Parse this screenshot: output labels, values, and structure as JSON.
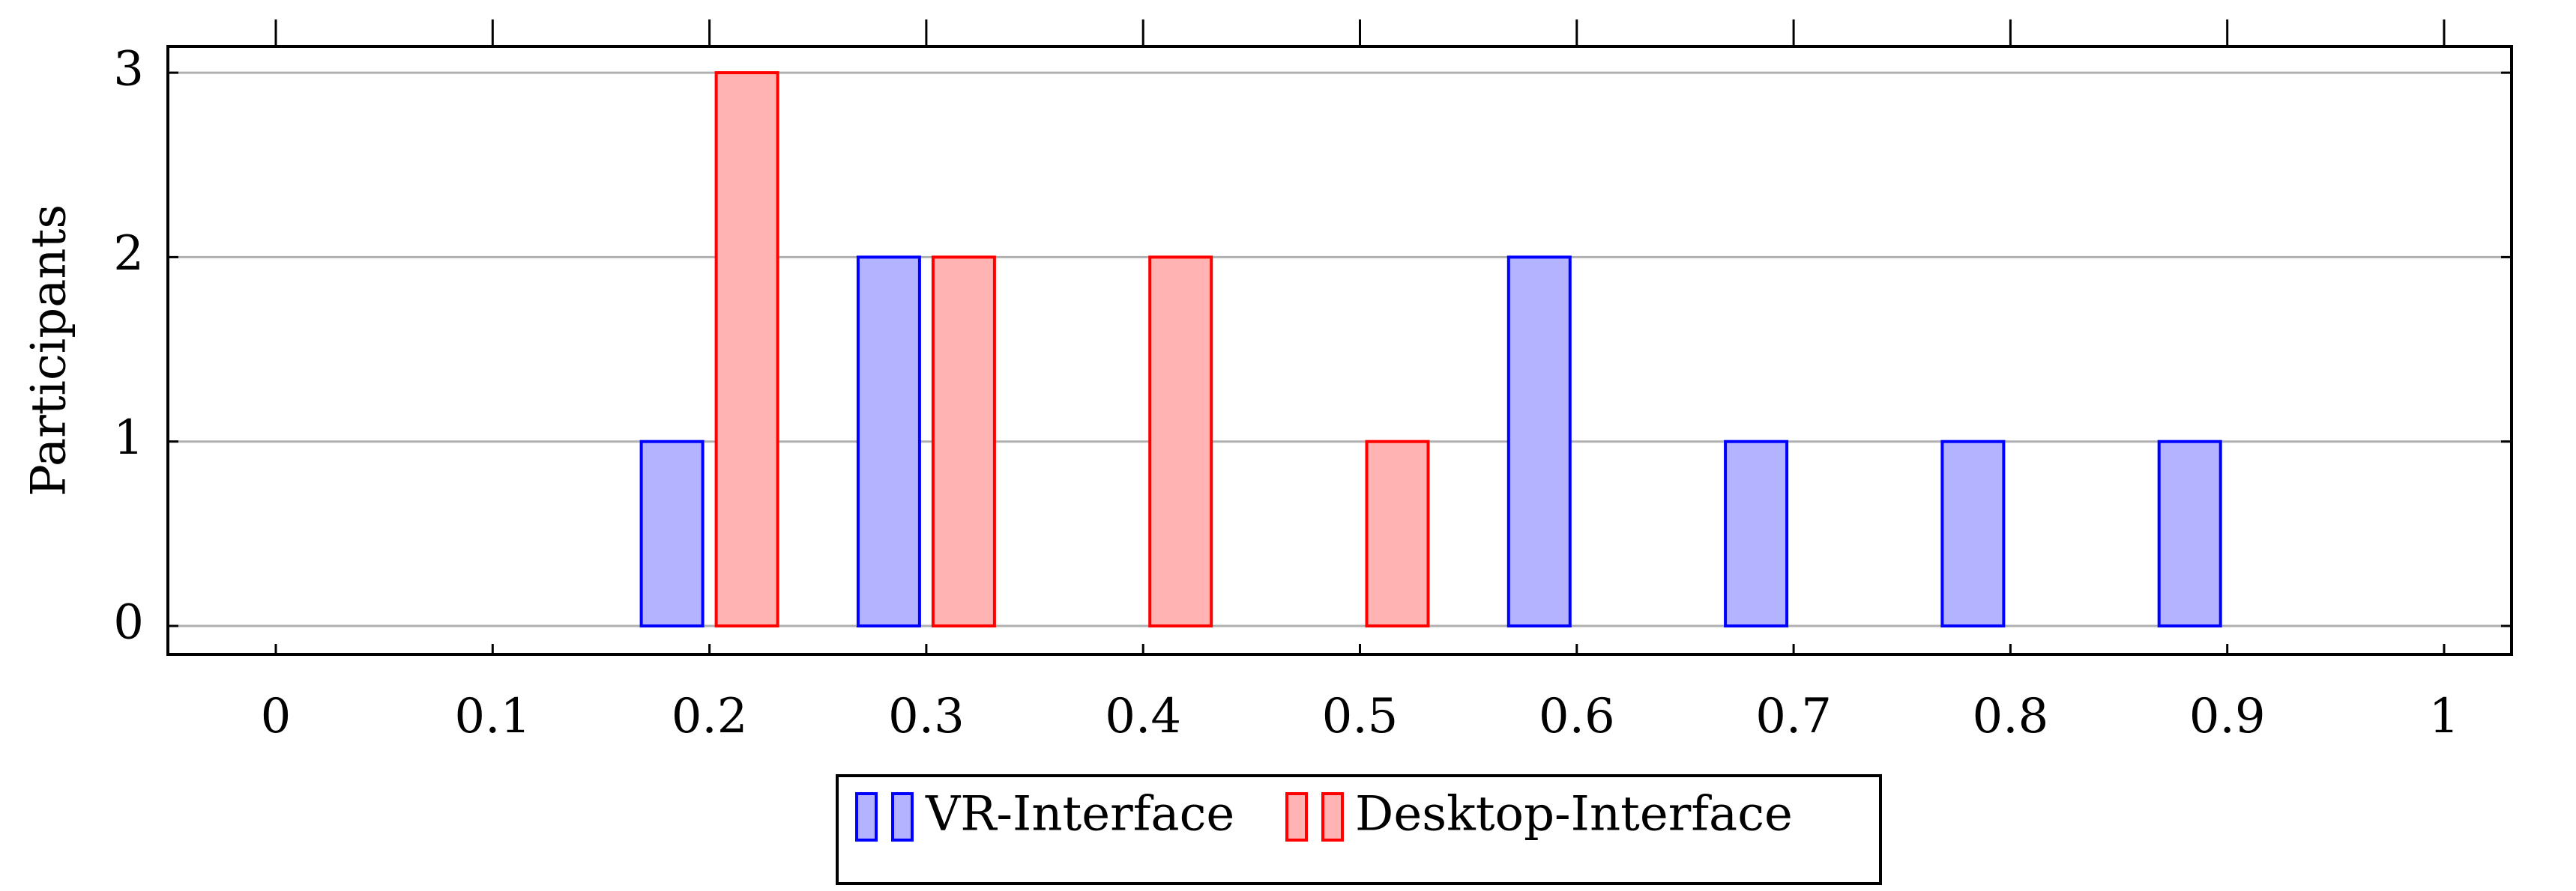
{
  "chart_data": {
    "type": "bar",
    "x": [
      "0",
      "0.1",
      "0.2",
      "0.3",
      "0.4",
      "0.5",
      "0.6",
      "0.7",
      "0.8",
      "0.9",
      "1"
    ],
    "series": [
      {
        "name": "VR-Interface",
        "values": [
          0,
          0,
          1,
          2,
          0,
          0,
          2,
          1,
          1,
          1,
          0
        ],
        "fill": "#b3b3ff",
        "stroke": "#0000ff"
      },
      {
        "name": "Desktop-Interface",
        "values": [
          0,
          0,
          3,
          2,
          2,
          1,
          0,
          0,
          0,
          0,
          0
        ],
        "fill": "#ffb3b3",
        "stroke": "#ff0000"
      }
    ],
    "xlabel": "",
    "ylabel": "Participants",
    "ylim": [
      0,
      3
    ],
    "yticks": [
      "0",
      "1",
      "2",
      "3"
    ],
    "grid": "horizontal",
    "legend": "bottom-center"
  }
}
